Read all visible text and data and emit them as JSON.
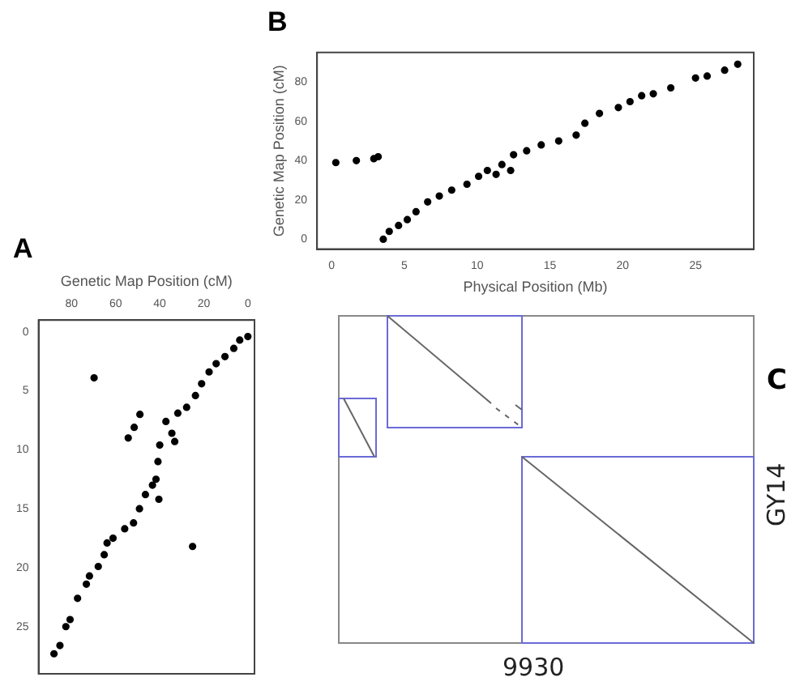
{
  "chart_data": [
    {
      "type": "scatter",
      "title": "A",
      "xlabel": "Genetic Map Position (cM)",
      "marker": "circle",
      "grid": false,
      "legend": false,
      "xlim": [
        95,
        -3
      ],
      "ylim": [
        29,
        -1
      ],
      "xticks": [
        80,
        60,
        40,
        20,
        0
      ],
      "yticks": [
        0,
        5,
        10,
        15,
        20,
        25
      ],
      "series": [
        {
          "color": "#000000",
          "x": [
            0,
            3.7,
            6.4,
            10.4,
            14.4,
            17.6,
            21,
            23.8,
            27.8,
            31.8,
            69.8,
            49,
            51.6,
            54.3,
            37.2,
            34.5,
            33.2,
            40,
            40.8,
            41.7,
            43.3,
            40.4,
            46.5,
            49.2,
            51.9,
            55.9,
            61.2,
            63.9,
            65.2,
            67.9,
            71.9,
            73.3,
            77.3,
            80.7,
            82.6,
            85.3,
            88,
            25.1
          ],
          "values": [
            0.4,
            0.7,
            1.4,
            2.1,
            2.7,
            3.4,
            4.4,
            5.4,
            6.4,
            6.9,
            3.9,
            7,
            8.1,
            9,
            7.6,
            8.6,
            9.3,
            9.6,
            11,
            12.5,
            13,
            14.2,
            13.8,
            15,
            16.2,
            16.7,
            17.5,
            17.9,
            18.9,
            19.9,
            20.7,
            21.4,
            22.6,
            24.4,
            25,
            26.6,
            27.3,
            18.2
          ]
        }
      ]
    },
    {
      "type": "scatter",
      "title": "B",
      "xlabel": "Physical Position (Mb)",
      "ylabel": "Genetic Map Position (cM)",
      "marker": "circle",
      "grid": false,
      "legend": false,
      "xlim": [
        -1,
        29
      ],
      "ylim": [
        -5,
        95
      ],
      "xticks": [
        0,
        5,
        10,
        15,
        20,
        25
      ],
      "yticks": [
        0,
        20,
        40,
        60,
        80
      ],
      "series": [
        {
          "color": "#000000",
          "x": [
            0.29,
            1.7,
            2.9,
            3.2,
            3.55,
            3.96,
            4.6,
            5.2,
            5.8,
            6.6,
            7.4,
            8.25,
            9.3,
            10.1,
            10.7,
            11.3,
            11.7,
            12.3,
            12.5,
            13.4,
            14.4,
            15.6,
            16.8,
            17.4,
            18.4,
            19.7,
            20.5,
            21.3,
            22.1,
            23.3,
            25,
            25.8,
            27,
            27.9
          ],
          "values": [
            39,
            40,
            41,
            42,
            0,
            4,
            7,
            10,
            14,
            19,
            22,
            25,
            28,
            32,
            35,
            33,
            38,
            35,
            43,
            45,
            48,
            50,
            53,
            59,
            64,
            67,
            70,
            73,
            74,
            77,
            82,
            83,
            86,
            89
          ]
        }
      ]
    },
    {
      "type": "other",
      "title": "C",
      "xlabel": "9930",
      "ylabel": "GY14"
    }
  ]
}
